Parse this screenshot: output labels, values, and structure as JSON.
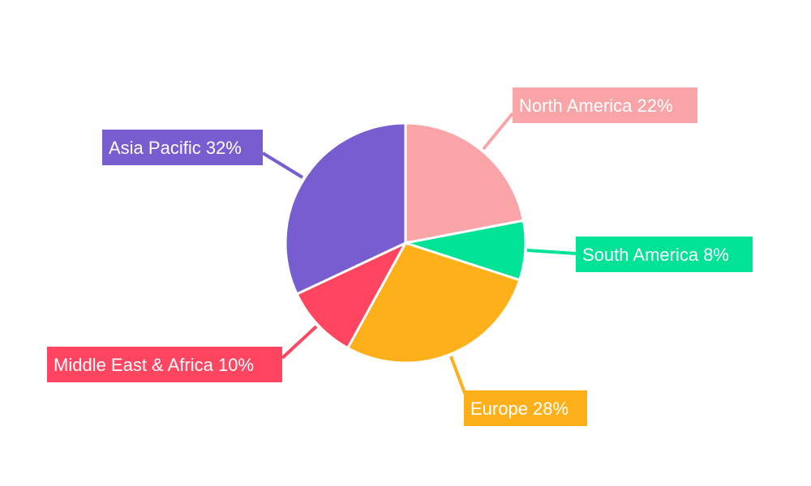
{
  "chart_data": {
    "type": "pie",
    "start_angle": "12 o'clock, clockwise",
    "slices": [
      {
        "label": "North America",
        "value": 22,
        "text": "North America 22%",
        "color": "#F9A5A7"
      },
      {
        "label": "South America",
        "value": 8,
        "text": "South America 8%",
        "color": "#00E396"
      },
      {
        "label": "Europe",
        "value": 28,
        "text": "Europe 28%",
        "color": "#FDB01A"
      },
      {
        "label": "Middle East & Africa",
        "value": 10,
        "text": "Middle East & Africa 10%",
        "color": "#FF4560"
      },
      {
        "label": "Asia Pacific",
        "value": 32,
        "text": "Asia Pacific 32%",
        "color": "#775DD0"
      }
    ],
    "legend": "none",
    "labels": "outside with leader lines"
  }
}
